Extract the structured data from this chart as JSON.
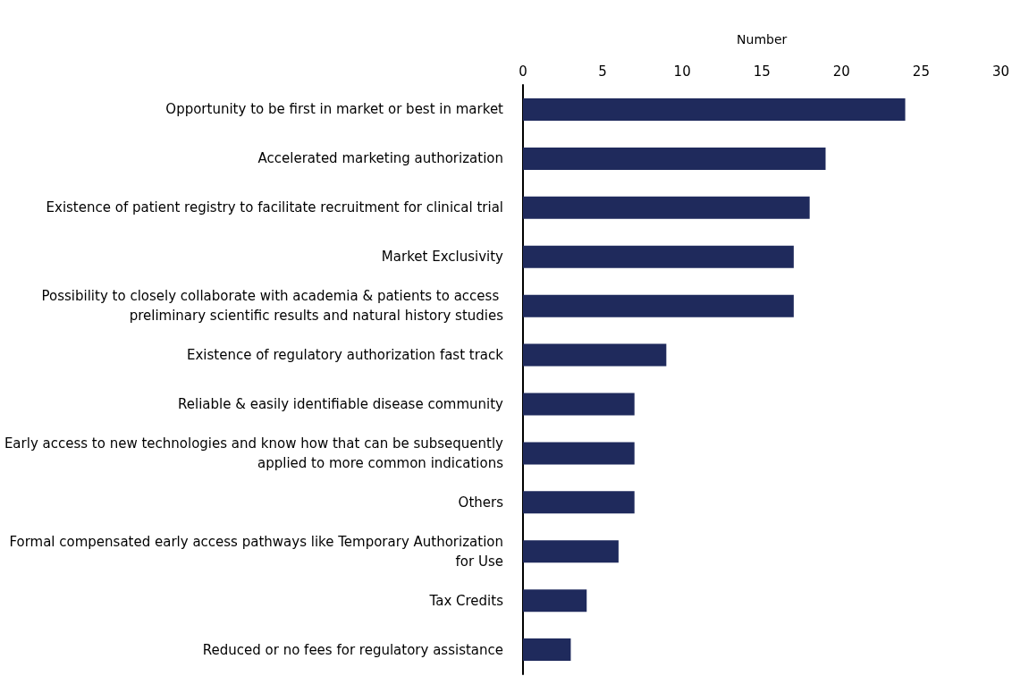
{
  "chart_data": {
    "type": "bar",
    "orientation": "horizontal",
    "xlabel": "Number",
    "categories": [
      "Opportunity to be first in market or best in market",
      "Accelerated marketing authorization",
      "Existence of patient registry to facilitate recruitment for clinical trial",
      "Market Exclusivity",
      "Possibility to closely collaborate with academia & patients to access preliminary scientific results and natural history studies",
      "Existence of regulatory authorization fast track",
      "Reliable & easily identifiable disease community",
      "Early access to new technologies and know how that can be subsequently applied to more common indications",
      "Others",
      "Formal compensated early access pathways like Temporary Authorization for Use",
      "Tax Credits",
      "Reduced or no fees for regulatory assistance"
    ],
    "values": [
      24,
      19,
      18,
      17,
      17,
      9,
      7,
      7,
      7,
      6,
      4,
      3
    ],
    "color": "#1f2a5c",
    "xlim": [
      0,
      30
    ],
    "xticks": [
      0,
      5,
      10,
      15,
      20,
      25,
      30
    ],
    "grid": false
  }
}
